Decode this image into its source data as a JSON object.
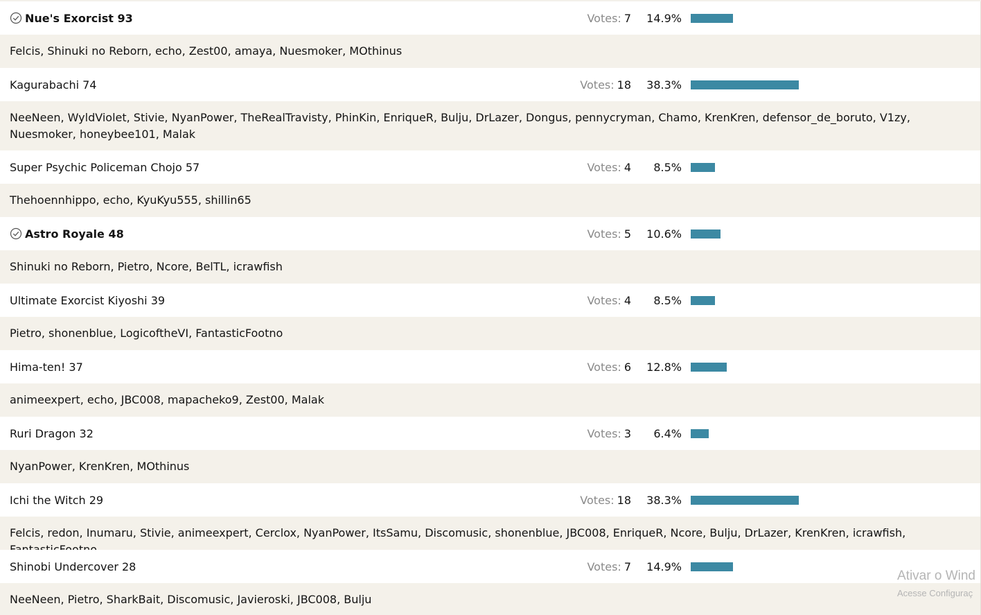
{
  "poll": {
    "votes_word": "Votes:",
    "bar_color": "#3c89a3",
    "options": [
      {
        "label": "Nue's Exorcist 93",
        "bold": true,
        "checked": true,
        "votes": "7",
        "percent": "14.9%",
        "fraction": 0.149,
        "voters": "Felcis, Shinuki no Reborn, echo, Zest00, amaya, Nuesmoker, MOthinus"
      },
      {
        "label": "Kagurabachi 74",
        "bold": false,
        "checked": false,
        "votes": "18",
        "percent": "38.3%",
        "fraction": 0.383,
        "voters": "NeeNeen, WyldViolet, Stivie, NyanPower, TheRealTravisty, PhinKin, EnriqueR, Bulju, DrLazer, Dongus, pennycryman, Chamo, KrenKren, defensor_de_boruto, V1zy, Nuesmoker, honeybee101, Malak"
      },
      {
        "label": "Super Psychic Policeman Chojo 57",
        "bold": false,
        "checked": false,
        "votes": "4",
        "percent": "8.5%",
        "fraction": 0.085,
        "voters": "Thehoennhippo, echo, KyuKyu555, shillin65"
      },
      {
        "label": "Astro Royale 48",
        "bold": true,
        "checked": true,
        "votes": "5",
        "percent": "10.6%",
        "fraction": 0.106,
        "voters": "Shinuki no Reborn, Pietro, Ncore, BelTL, icrawfish"
      },
      {
        "label": "Ultimate Exorcist Kiyoshi 39",
        "bold": false,
        "checked": false,
        "votes": "4",
        "percent": "8.5%",
        "fraction": 0.085,
        "voters": "Pietro, shonenblue, LogicoftheVI, FantasticFootno"
      },
      {
        "label": "Hima-ten! 37",
        "bold": false,
        "checked": false,
        "votes": "6",
        "percent": "12.8%",
        "fraction": 0.128,
        "voters": "animeexpert, echo, JBC008, mapacheko9, Zest00, Malak"
      },
      {
        "label": "Ruri Dragon 32",
        "bold": false,
        "checked": false,
        "votes": "3",
        "percent": "6.4%",
        "fraction": 0.064,
        "voters": "NyanPower, KrenKren, MOthinus"
      },
      {
        "label": "Ichi the Witch 29",
        "bold": false,
        "checked": false,
        "votes": "18",
        "percent": "38.3%",
        "fraction": 0.383,
        "voters": "Felcis, redon, Inumaru, Stivie, animeexpert, Cerclox, NyanPower, ItsSamu, Discomusic, shonenblue, JBC008, EnriqueR, Ncore, Bulju, DrLazer, KrenKren, icrawfish, FantasticFootno"
      },
      {
        "label": "Shinobi Undercover 28",
        "bold": false,
        "checked": false,
        "votes": "7",
        "percent": "14.9%",
        "fraction": 0.149,
        "voters": "NeeNeen, Pietro, SharkBait, Discomusic, Javieroski, JBC008, Bulju"
      }
    ]
  },
  "watermark": {
    "line1": "Ativar o Wind",
    "line2": "Acesse Configuraç"
  }
}
